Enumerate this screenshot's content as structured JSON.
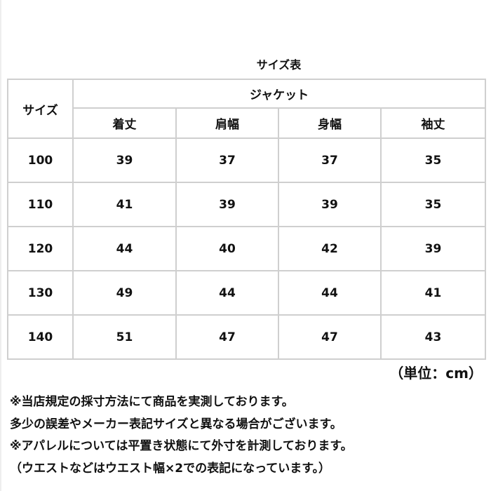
{
  "title": "サイズ表",
  "table": {
    "size_header": "サイズ",
    "group_header": "ジャケット",
    "columns": [
      "着丈",
      "肩幅",
      "身幅",
      "袖丈"
    ],
    "rows": [
      {
        "size": "100",
        "values": [
          "39",
          "37",
          "37",
          "35"
        ]
      },
      {
        "size": "110",
        "values": [
          "41",
          "39",
          "39",
          "35"
        ]
      },
      {
        "size": "120",
        "values": [
          "44",
          "40",
          "42",
          "39"
        ]
      },
      {
        "size": "130",
        "values": [
          "49",
          "44",
          "44",
          "41"
        ]
      },
      {
        "size": "140",
        "values": [
          "51",
          "47",
          "47",
          "43"
        ]
      }
    ]
  },
  "unit": "（単位：cm）",
  "notes": [
    "※当店規定の採寸方法にて商品を実測しております。",
    "多少の誤差やメーカー表記サイズと異なる場合がございます。",
    "※アパレルについては平置き状態にて外寸を計測しております。",
    "（ウエストなどはウエスト幅×2での表記になっています。）"
  ]
}
